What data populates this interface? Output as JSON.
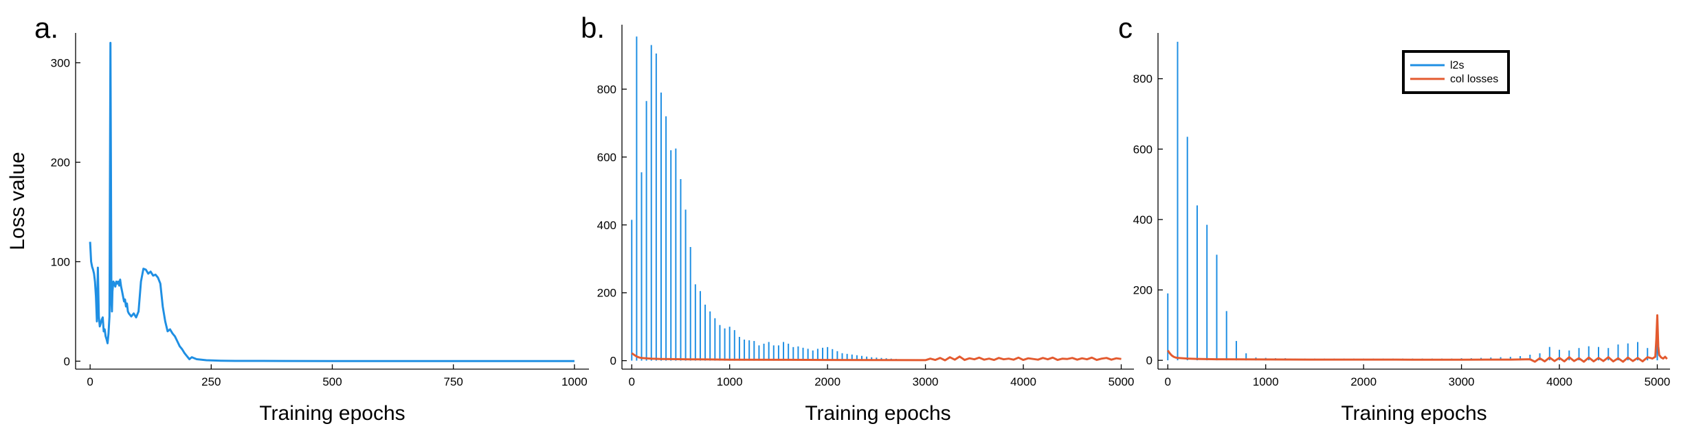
{
  "colors": {
    "blue": "#1f8fe3",
    "orange": "#e35a2f"
  },
  "chart_data": [
    {
      "id": "a",
      "panel_label": "a.",
      "type": "line",
      "xlabel": "Training epochs",
      "ylabel": "Loss value",
      "xlim": [
        -30,
        1030
      ],
      "ylim": [
        -8,
        330
      ],
      "xticks": [
        0,
        250,
        500,
        750,
        1000
      ],
      "yticks": [
        0,
        100,
        200,
        300
      ],
      "grid": false,
      "series": [
        {
          "color": "blue",
          "style": "line",
          "x": [
            0,
            2,
            4,
            6,
            8,
            10,
            12,
            14,
            16,
            18,
            20,
            22,
            24,
            26,
            28,
            30,
            32,
            34,
            36,
            38,
            40,
            42,
            43,
            44,
            45,
            46,
            48,
            50,
            52,
            54,
            56,
            58,
            60,
            62,
            64,
            66,
            68,
            70,
            72,
            74,
            76,
            78,
            80,
            85,
            90,
            95,
            100,
            105,
            110,
            115,
            120,
            125,
            130,
            135,
            140,
            145,
            150,
            155,
            160,
            165,
            170,
            175,
            180,
            185,
            190,
            195,
            200,
            205,
            210,
            215,
            220,
            230,
            240,
            250,
            270,
            300,
            400,
            500,
            600,
            700,
            800,
            900,
            1000
          ],
          "y": [
            120,
            100,
            95,
            92,
            88,
            80,
            65,
            40,
            94,
            45,
            35,
            38,
            42,
            44,
            30,
            32,
            25,
            22,
            18,
            28,
            45,
            320,
            200,
            60,
            50,
            70,
            80,
            78,
            75,
            80,
            78,
            80,
            76,
            82,
            75,
            70,
            65,
            60,
            62,
            55,
            58,
            50,
            48,
            45,
            48,
            44,
            50,
            80,
            93,
            92,
            88,
            90,
            86,
            87,
            84,
            78,
            55,
            40,
            30,
            32,
            28,
            25,
            20,
            15,
            12,
            8,
            5,
            2,
            4,
            3,
            2,
            1.5,
            1,
            0.8,
            0.5,
            0.3,
            0.2,
            0.1,
            0.1,
            0.1,
            0.1,
            0.1,
            0.1
          ]
        }
      ]
    },
    {
      "id": "b",
      "panel_label": "b.",
      "type": "line",
      "xlabel": "Training epochs",
      "ylabel": "",
      "xlim": [
        -100,
        5130
      ],
      "ylim": [
        -25,
        990
      ],
      "xticks": [
        0,
        1000,
        2000,
        3000,
        4000,
        5000
      ],
      "yticks": [
        0,
        200,
        400,
        600,
        800
      ],
      "grid": false,
      "series": [
        {
          "color": "blue",
          "style": "spikes",
          "x": [
            0,
            50,
            100,
            150,
            200,
            250,
            300,
            350,
            400,
            450,
            500,
            550,
            600,
            650,
            700,
            750,
            800,
            850,
            900,
            950,
            1000,
            1050,
            1100,
            1150,
            1200,
            1250,
            1300,
            1350,
            1400,
            1450,
            1500,
            1550,
            1600,
            1650,
            1700,
            1750,
            1800,
            1850,
            1900,
            1950,
            2000,
            2050,
            2100,
            2150,
            2200,
            2250,
            2300,
            2350,
            2400,
            2450,
            2500,
            2550,
            2600,
            2650,
            2700,
            2750,
            2800,
            2850,
            2900,
            2950,
            3000
          ],
          "y": [
            415,
            955,
            555,
            765,
            930,
            905,
            790,
            720,
            620,
            625,
            535,
            445,
            335,
            225,
            205,
            165,
            145,
            125,
            105,
            95,
            100,
            90,
            70,
            62,
            60,
            58,
            45,
            50,
            55,
            45,
            45,
            55,
            50,
            40,
            42,
            38,
            35,
            30,
            35,
            38,
            40,
            34,
            28,
            22,
            20,
            18,
            16,
            14,
            12,
            10,
            9,
            8,
            7,
            6,
            5,
            4,
            3,
            3,
            2,
            2,
            2
          ]
        },
        {
          "color": "orange",
          "style": "line",
          "x": [
            0,
            20,
            40,
            60,
            80,
            100,
            150,
            200,
            300,
            400,
            600,
            800,
            1000,
            1500,
            2000,
            2500,
            3000,
            3050,
            3100,
            3150,
            3200,
            3250,
            3300,
            3350,
            3400,
            3450,
            3500,
            3550,
            3600,
            3650,
            3700,
            3750,
            3800,
            3850,
            3900,
            3950,
            4000,
            4050,
            4100,
            4150,
            4200,
            4250,
            4300,
            4350,
            4400,
            4450,
            4500,
            4550,
            4600,
            4650,
            4700,
            4750,
            4800,
            4850,
            4900,
            4950,
            5000
          ],
          "y": [
            22,
            18,
            14,
            11,
            9,
            8,
            7,
            6,
            5,
            4.5,
            4,
            3.5,
            3,
            2.5,
            2,
            1.8,
            1.5,
            6,
            2,
            8,
            1,
            10,
            3,
            12,
            2,
            7,
            4,
            9,
            3,
            6,
            2,
            8,
            4,
            6,
            3,
            9,
            2,
            7,
            5,
            3,
            8,
            4,
            9,
            2,
            6,
            5,
            8,
            3,
            7,
            4,
            9,
            2,
            6,
            8,
            3,
            7,
            5
          ]
        }
      ]
    },
    {
      "id": "c",
      "panel_label": "c",
      "type": "line",
      "xlabel": "Training epochs",
      "ylabel": "",
      "xlim": [
        -100,
        5130
      ],
      "ylim": [
        -25,
        930
      ],
      "xticks": [
        0,
        1000,
        2000,
        3000,
        4000,
        5000
      ],
      "yticks": [
        0,
        200,
        400,
        600,
        800
      ],
      "grid": false,
      "legend": {
        "placement": "top-right",
        "entries": [
          "l2s",
          "col losses"
        ]
      },
      "series": [
        {
          "name": "l2s",
          "color": "blue",
          "style": "spikes",
          "x": [
            0,
            100,
            200,
            300,
            400,
            500,
            600,
            700,
            800,
            900,
            1000,
            1100,
            1200,
            1300,
            1400,
            1500,
            1600,
            1700,
            1800,
            1900,
            2000,
            2100,
            2200,
            2300,
            2400,
            2500,
            2600,
            2700,
            2800,
            2900,
            3000,
            3100,
            3200,
            3300,
            3400,
            3500,
            3600,
            3700,
            3800,
            3900,
            4000,
            4100,
            4200,
            4300,
            4400,
            4500,
            4600,
            4700,
            4800,
            4900,
            5000
          ],
          "y": [
            190,
            905,
            635,
            440,
            385,
            300,
            140,
            55,
            20,
            8,
            7,
            6,
            6,
            5,
            5,
            5,
            5,
            5,
            5,
            5,
            5,
            5,
            5,
            5,
            5,
            5,
            5,
            5,
            5,
            5,
            6,
            6,
            7,
            8,
            9,
            10,
            12,
            16,
            20,
            38,
            30,
            28,
            35,
            40,
            38,
            35,
            45,
            48,
            52,
            35,
            70
          ]
        },
        {
          "name": "col losses",
          "color": "orange",
          "style": "line",
          "x": [
            0,
            20,
            40,
            60,
            80,
            100,
            150,
            200,
            300,
            500,
            1000,
            1500,
            2000,
            2500,
            3000,
            3500,
            3700,
            3750,
            3800,
            3850,
            3900,
            3950,
            4000,
            4050,
            4100,
            4150,
            4200,
            4250,
            4300,
            4350,
            4400,
            4450,
            4500,
            4550,
            4600,
            4650,
            4700,
            4750,
            4800,
            4850,
            4900,
            4950,
            4980,
            4990,
            5000,
            5010,
            5020,
            5040,
            5060,
            5080,
            5100
          ],
          "y": [
            28,
            20,
            14,
            10,
            8,
            7,
            6,
            5,
            4,
            3,
            2.5,
            2,
            2,
            1.8,
            1.8,
            2,
            3,
            -4,
            6,
            -3,
            8,
            -2,
            7,
            -3,
            9,
            -2,
            6,
            -4,
            8,
            -3,
            7,
            -2,
            9,
            -3,
            6,
            -4,
            8,
            -2,
            7,
            -3,
            9,
            5,
            10,
            60,
            128,
            40,
            15,
            8,
            5,
            10,
            4
          ]
        }
      ]
    }
  ]
}
